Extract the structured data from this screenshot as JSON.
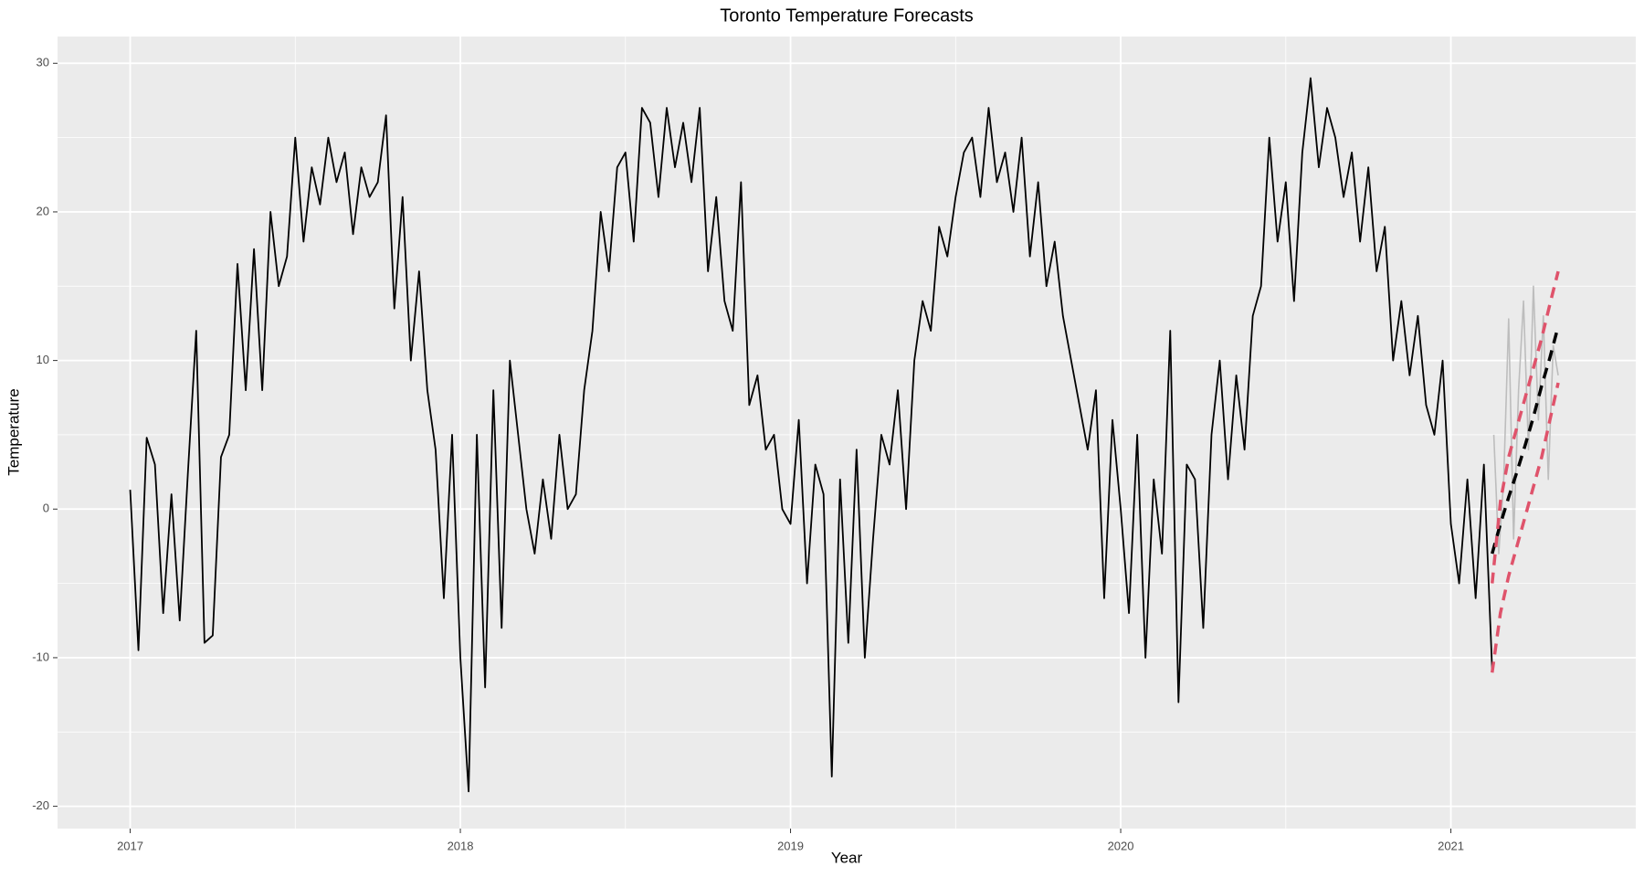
{
  "chart_data": {
    "type": "line",
    "title": "Toronto Temperature Forecasts",
    "x_label": "Year",
    "y_label": "Temperature",
    "xlim": [
      2016.78,
      2021.56
    ],
    "ylim": [
      -21.5,
      31.8
    ],
    "xticks": [
      2017,
      2018,
      2019,
      2020,
      2021
    ],
    "yticks": [
      -20,
      -10,
      0,
      10,
      20,
      30
    ],
    "grid": true,
    "background": "#ebebeb",
    "series": [
      {
        "color": "#000000",
        "width": 1.8,
        "dashed": false,
        "x": [
          2017.0,
          2017.025,
          2017.05,
          2017.075,
          2017.1,
          2017.125,
          2017.15,
          2017.175,
          2017.2,
          2017.225,
          2017.25,
          2017.275,
          2017.3,
          2017.325,
          2017.35,
          2017.375,
          2017.4,
          2017.425,
          2017.45,
          2017.475,
          2017.5,
          2017.525,
          2017.55,
          2017.575,
          2017.6,
          2017.625,
          2017.65,
          2017.675,
          2017.7,
          2017.725,
          2017.75,
          2017.775,
          2017.8,
          2017.825,
          2017.85,
          2017.875,
          2017.9,
          2017.925,
          2017.95,
          2017.975,
          2018.0,
          2018.025,
          2018.05,
          2018.075,
          2018.1,
          2018.125,
          2018.15,
          2018.175,
          2018.2,
          2018.225,
          2018.25,
          2018.275,
          2018.3,
          2018.325,
          2018.35,
          2018.375,
          2018.4,
          2018.425,
          2018.45,
          2018.475,
          2018.5,
          2018.525,
          2018.55,
          2018.575,
          2018.6,
          2018.625,
          2018.65,
          2018.675,
          2018.7,
          2018.725,
          2018.75,
          2018.775,
          2018.8,
          2018.825,
          2018.85,
          2018.875,
          2018.9,
          2018.925,
          2018.95,
          2018.975,
          2019.0,
          2019.025,
          2019.05,
          2019.075,
          2019.1,
          2019.125,
          2019.15,
          2019.175,
          2019.2,
          2019.225,
          2019.25,
          2019.275,
          2019.3,
          2019.325,
          2019.35,
          2019.375,
          2019.4,
          2019.425,
          2019.45,
          2019.475,
          2019.5,
          2019.525,
          2019.55,
          2019.575,
          2019.6,
          2019.625,
          2019.65,
          2019.675,
          2019.7,
          2019.725,
          2019.75,
          2019.775,
          2019.8,
          2019.825,
          2019.85,
          2019.875,
          2019.9,
          2019.925,
          2019.95,
          2019.975,
          2020.0,
          2020.025,
          2020.05,
          2020.075,
          2020.1,
          2020.125,
          2020.15,
          2020.175,
          2020.2,
          2020.225,
          2020.25,
          2020.275,
          2020.3,
          2020.325,
          2020.35,
          2020.375,
          2020.4,
          2020.425,
          2020.45,
          2020.475,
          2020.5,
          2020.525,
          2020.55,
          2020.575,
          2020.6,
          2020.625,
          2020.65,
          2020.675,
          2020.7,
          2020.725,
          2020.75,
          2020.775,
          2020.8,
          2020.825,
          2020.85,
          2020.875,
          2020.9,
          2020.925,
          2020.95,
          2020.975,
          2021.0,
          2021.025,
          2021.05,
          2021.075,
          2021.1,
          2021.125
        ],
        "values": [
          1.3,
          -9.5,
          4.8,
          3.0,
          -7.0,
          1.0,
          -7.5,
          2.5,
          12.0,
          -9.0,
          -8.5,
          3.5,
          5.0,
          16.5,
          8.0,
          17.5,
          8.0,
          20.0,
          15.0,
          17.0,
          25.0,
          18.0,
          23.0,
          20.5,
          25.0,
          22.0,
          24.0,
          18.5,
          23.0,
          21.0,
          22.0,
          26.5,
          13.5,
          21.0,
          10.0,
          16.0,
          8.0,
          4.0,
          -6.0,
          5.0,
          -10.0,
          -19.0,
          5.0,
          -12.0,
          8.0,
          -8.0,
          10.0,
          5.0,
          0.0,
          -3.0,
          2.0,
          -2.0,
          5.0,
          0.0,
          1.0,
          8.0,
          12.0,
          20.0,
          16.0,
          23.0,
          24.0,
          18.0,
          27.0,
          26.0,
          21.0,
          27.0,
          23.0,
          26.0,
          22.0,
          27.0,
          16.0,
          21.0,
          14.0,
          12.0,
          22.0,
          7.0,
          9.0,
          4.0,
          5.0,
          0.0,
          -1.0,
          6.0,
          -5.0,
          3.0,
          1.0,
          -18.0,
          2.0,
          -9.0,
          4.0,
          -10.0,
          -2.0,
          5.0,
          3.0,
          8.0,
          0.0,
          10.0,
          14.0,
          12.0,
          19.0,
          17.0,
          21.0,
          24.0,
          25.0,
          21.0,
          27.0,
          22.0,
          24.0,
          20.0,
          25.0,
          17.0,
          22.0,
          15.0,
          18.0,
          13.0,
          10.0,
          7.0,
          4.0,
          8.0,
          -6.0,
          6.0,
          0.0,
          -7.0,
          5.0,
          -10.0,
          2.0,
          -3.0,
          12.0,
          -13.0,
          3.0,
          2.0,
          -8.0,
          5.0,
          10.0,
          2.0,
          9.0,
          4.0,
          13.0,
          15.0,
          25.0,
          18.0,
          22.0,
          14.0,
          24.0,
          29.0,
          23.0,
          27.0,
          25.0,
          21.0,
          24.0,
          18.0,
          23.0,
          16.0,
          19.0,
          10.0,
          14.0,
          9.0,
          13.0,
          7.0,
          5.0,
          10.0,
          -1.0,
          -5.0,
          2.0,
          -6.0,
          3.0,
          -10.8
        ]
      },
      {
        "color": "#bdbdbd",
        "width": 1.6,
        "dashed": false,
        "x": [
          2021.13,
          2021.145,
          2021.16,
          2021.175,
          2021.19,
          2021.205,
          2021.22,
          2021.235,
          2021.25,
          2021.265,
          2021.28,
          2021.295,
          2021.31,
          2021.325
        ],
        "values": [
          5.0,
          -3.0,
          2.0,
          12.8,
          -2.0,
          8.0,
          14.0,
          4.0,
          15.0,
          6.0,
          13.0,
          2.0,
          11.0,
          9.0
        ]
      },
      {
        "color": "#000000",
        "width": 3.5,
        "dashed": true,
        "x": [
          2021.125,
          2021.15,
          2021.175,
          2021.2,
          2021.225,
          2021.25,
          2021.275,
          2021.3,
          2021.325
        ],
        "values": [
          -3.0,
          -1.0,
          0.8,
          2.5,
          4.3,
          6.2,
          8.3,
          10.2,
          12.3
        ]
      },
      {
        "color": "#df536b",
        "width": 3.5,
        "dashed": true,
        "x": [
          2021.125,
          2021.15,
          2021.175,
          2021.2,
          2021.225,
          2021.25,
          2021.275,
          2021.3,
          2021.325
        ],
        "values": [
          -5.0,
          0.5,
          3.5,
          5.5,
          7.5,
          9.5,
          11.5,
          13.8,
          16.0
        ]
      },
      {
        "color": "#df536b",
        "width": 3.5,
        "dashed": true,
        "x": [
          2021.125,
          2021.15,
          2021.175,
          2021.2,
          2021.225,
          2021.25,
          2021.275,
          2021.3,
          2021.325
        ],
        "values": [
          -11.0,
          -7.0,
          -4.5,
          -2.5,
          -0.5,
          1.5,
          3.5,
          6.0,
          8.5
        ]
      }
    ]
  }
}
